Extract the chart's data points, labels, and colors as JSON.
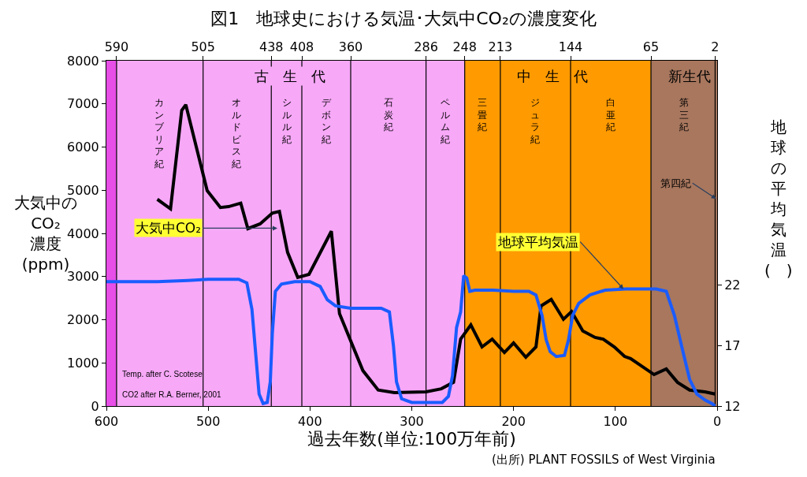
{
  "chart_data": {
    "type": "line",
    "title": "図1　地球史における気温･大気中CO₂の濃度変化",
    "xlabel": "過去年数(単位:100万年前)",
    "ylabel": "大気中の\nCO₂\n濃度\n(ppm)",
    "y2label": "地球の平均気温\n(　)",
    "xlim": [
      600,
      0
    ],
    "xticks": [
      600,
      500,
      400,
      300,
      200,
      100,
      0
    ],
    "x2lim": [
      600,
      0
    ],
    "x2ticks": [
      590,
      505,
      438,
      408,
      360,
      286,
      248,
      213,
      144,
      65,
      2
    ],
    "ylim": [
      0,
      8000
    ],
    "yticks": [
      0,
      1000,
      2000,
      3000,
      4000,
      5000,
      6000,
      7000,
      8000
    ],
    "y2lim": [
      12,
      40.6
    ],
    "y2ticks": [
      12,
      17,
      22
    ],
    "grid": "x",
    "marker": "none",
    "line_style": "solid",
    "series": [
      {
        "color": "#000000",
        "x": [
          550,
          537,
          526,
          522,
          501,
          488,
          480,
          468,
          461,
          449,
          437,
          430,
          422,
          412,
          401,
          379,
          371,
          348,
          333,
          317,
          286,
          271,
          259,
          252,
          242,
          231,
          221,
          209,
          200,
          188,
          178,
          173,
          163,
          151,
          143,
          132,
          120,
          112,
          101,
          91,
          85,
          62,
          50,
          39,
          27,
          12,
          2
        ],
        "values": [
          4790,
          4570,
          6850,
          6980,
          4990,
          4600,
          4620,
          4700,
          4110,
          4220,
          4470,
          4510,
          3560,
          2980,
          3050,
          4050,
          2140,
          820,
          370,
          310,
          330,
          400,
          550,
          1550,
          1880,
          1370,
          1550,
          1240,
          1460,
          1130,
          1370,
          2320,
          2470,
          2010,
          2190,
          1740,
          1590,
          1550,
          1370,
          1150,
          1100,
          730,
          860,
          550,
          370,
          330,
          280
        ]
      },
      {
        "color": "#1a5cff",
        "axis": "y2",
        "x": [
          600,
          590,
          550,
          520,
          500,
          470,
          462,
          457,
          453,
          450,
          446,
          442,
          439,
          437,
          434,
          428,
          415,
          400,
          390,
          383,
          375,
          360,
          330,
          322,
          318,
          315,
          310,
          300,
          270,
          264,
          260,
          256,
          252,
          249,
          246,
          243,
          238,
          220,
          200,
          185,
          178,
          172,
          168,
          164,
          158,
          150,
          146,
          142,
          136,
          125,
          110,
          90,
          60,
          50,
          42,
          35,
          27,
          20,
          12,
          5,
          2
        ],
        "values": [
          22.3,
          22.3,
          22.3,
          22.4,
          22.5,
          22.5,
          22.2,
          20,
          16,
          13,
          12.2,
          12.3,
          14,
          18,
          21.5,
          22.1,
          22.3,
          22.3,
          21.9,
          20.8,
          20.3,
          20.1,
          20.1,
          19.8,
          17,
          14,
          12.6,
          12.3,
          12.3,
          12.8,
          14.5,
          18.5,
          19.8,
          22.8,
          22.6,
          21.5,
          21.6,
          21.6,
          21.5,
          21.5,
          21.2,
          19.5,
          17.5,
          16.5,
          16.1,
          16.2,
          17.5,
          19.5,
          20.5,
          21.2,
          21.6,
          21.7,
          21.7,
          21.5,
          19.5,
          17,
          14.2,
          13,
          12.5,
          12.2,
          12
        ]
      }
    ],
    "bands": [
      {
        "axis": "x",
        "from": 600,
        "to": 590,
        "color": "#e84ee8"
      },
      {
        "axis": "x",
        "from": 590,
        "to": 505,
        "color": "#f7a8f7",
        "label": "カンブリア紀"
      },
      {
        "axis": "x",
        "from": 505,
        "to": 438,
        "color": "#f7a8f7",
        "label": "オルドビス紀"
      },
      {
        "axis": "x",
        "from": 438,
        "to": 408,
        "color": "#f7a8f7",
        "label": "シルル紀"
      },
      {
        "axis": "x",
        "from": 408,
        "to": 360,
        "color": "#f7a8f7",
        "label": "デボン紀"
      },
      {
        "axis": "x",
        "from": 360,
        "to": 286,
        "color": "#f7a8f7",
        "label": "石炭紀"
      },
      {
        "axis": "x",
        "from": 286,
        "to": 248,
        "color": "#f7a8f7",
        "label": "ペルム紀"
      },
      {
        "axis": "x",
        "from": 248,
        "to": 213,
        "color": "#ff9a00",
        "label": "三畳紀"
      },
      {
        "axis": "x",
        "from": 213,
        "to": 144,
        "color": "#ff9a00",
        "label": "ジュラ紀"
      },
      {
        "axis": "x",
        "from": 144,
        "to": 65,
        "color": "#ff9a00",
        "label": "白亜紀"
      },
      {
        "axis": "x",
        "from": 65,
        "to": 0,
        "color": "#a8775e",
        "label": "第三紀"
      }
    ],
    "annotations": [
      {
        "text": "第四紀",
        "x": 1,
        "y": 4800
      },
      {
        "text": "大気中CO₂",
        "x": 432,
        "y": 4120
      },
      {
        "text": "地球平均気温",
        "x": 92,
        "y": 2710
      },
      "古　生　代",
      "中　生　代",
      "新生代",
      "Temp. after C. Scotese",
      "CO2 after R.A. Berner, 2001",
      "(出所) PLANT FOSSILS of West Virginia"
    ]
  }
}
